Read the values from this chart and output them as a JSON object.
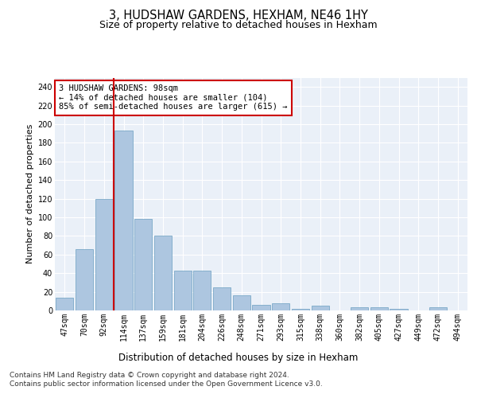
{
  "title_line1": "3, HUDSHAW GARDENS, HEXHAM, NE46 1HY",
  "title_line2": "Size of property relative to detached houses in Hexham",
  "xlabel": "Distribution of detached houses by size in Hexham",
  "ylabel": "Number of detached properties",
  "categories": [
    "47sqm",
    "70sqm",
    "92sqm",
    "114sqm",
    "137sqm",
    "159sqm",
    "181sqm",
    "204sqm",
    "226sqm",
    "248sqm",
    "271sqm",
    "293sqm",
    "315sqm",
    "338sqm",
    "360sqm",
    "382sqm",
    "405sqm",
    "427sqm",
    "449sqm",
    "472sqm",
    "494sqm"
  ],
  "values": [
    14,
    66,
    120,
    193,
    98,
    80,
    43,
    43,
    25,
    16,
    6,
    8,
    2,
    5,
    0,
    3,
    3,
    2,
    0,
    3,
    0
  ],
  "bar_color": "#adc6e0",
  "bar_edgecolor": "#6a9fc0",
  "vline_color": "#cc0000",
  "annotation_text": "3 HUDSHAW GARDENS: 98sqm\n← 14% of detached houses are smaller (104)\n85% of semi-detached houses are larger (615) →",
  "annotation_box_color": "#ffffff",
  "annotation_box_edgecolor": "#cc0000",
  "ylim": [
    0,
    250
  ],
  "yticks": [
    0,
    20,
    40,
    60,
    80,
    100,
    120,
    140,
    160,
    180,
    200,
    220,
    240
  ],
  "bg_color": "#eaf0f8",
  "fig_color": "#ffffff",
  "footer_text": "Contains HM Land Registry data © Crown copyright and database right 2024.\nContains public sector information licensed under the Open Government Licence v3.0.",
  "title_fontsize": 10.5,
  "subtitle_fontsize": 9,
  "ylabel_fontsize": 8,
  "xlabel_fontsize": 8.5,
  "tick_fontsize": 7,
  "annotation_fontsize": 7.5,
  "footer_fontsize": 6.5
}
